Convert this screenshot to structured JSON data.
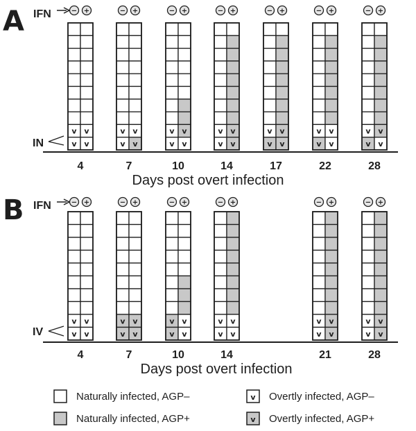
{
  "colors": {
    "positive_fill": "#c8c8c8",
    "negative_fill": "#ffffff",
    "ink": "#1e1e1e"
  },
  "symbols": {
    "minus": "−",
    "plus": "+",
    "overt_mark": "v"
  },
  "panels": [
    {
      "letter": "A",
      "ifn_label": "IFN",
      "overt_label": "IN",
      "axis_label": "Days post overt infection",
      "columns": [
        {
          "day": "4",
          "minus_cells": [
            "n",
            "n",
            "n",
            "n",
            "n",
            "n",
            "n",
            "n",
            "o",
            "o"
          ],
          "plus_cells": [
            "n",
            "n",
            "n",
            "n",
            "n",
            "n",
            "n",
            "n",
            "o",
            "o"
          ]
        },
        {
          "day": "7",
          "minus_cells": [
            "n",
            "n",
            "n",
            "n",
            "n",
            "n",
            "n",
            "n",
            "o",
            "o"
          ],
          "plus_cells": [
            "n",
            "n",
            "n",
            "n",
            "n",
            "n",
            "n",
            "n",
            "o",
            "O"
          ]
        },
        {
          "day": "10",
          "minus_cells": [
            "n",
            "n",
            "n",
            "n",
            "n",
            "n",
            "n",
            "n",
            "o",
            "o"
          ],
          "plus_cells": [
            "n",
            "n",
            "n",
            "n",
            "n",
            "n",
            "N",
            "N",
            "O",
            "o"
          ]
        },
        {
          "day": "14",
          "minus_cells": [
            "n",
            "n",
            "n",
            "n",
            "n",
            "n",
            "n",
            "n",
            "o",
            "o"
          ],
          "plus_cells": [
            "n",
            "N",
            "N",
            "N",
            "N",
            "N",
            "N",
            "N",
            "O",
            "O"
          ]
        },
        {
          "day": "17",
          "minus_cells": [
            "n",
            "n",
            "n",
            "n",
            "n",
            "n",
            "n",
            "n",
            "o",
            "O"
          ],
          "plus_cells": [
            "n",
            "N",
            "N",
            "N",
            "N",
            "N",
            "N",
            "N",
            "O",
            "O"
          ]
        },
        {
          "day": "22",
          "minus_cells": [
            "n",
            "n",
            "n",
            "n",
            "n",
            "n",
            "n",
            "n",
            "o",
            "O"
          ],
          "plus_cells": [
            "n",
            "N",
            "N",
            "N",
            "N",
            "N",
            "N",
            "N",
            "o",
            "o"
          ]
        },
        {
          "day": "28",
          "minus_cells": [
            "n",
            "n",
            "n",
            "n",
            "n",
            "n",
            "n",
            "n",
            "o",
            "O"
          ],
          "plus_cells": [
            "n",
            "N",
            "N",
            "N",
            "N",
            "N",
            "N",
            "N",
            "O",
            "o"
          ]
        }
      ]
    },
    {
      "letter": "B",
      "ifn_label": "IFN",
      "overt_label": "IV",
      "axis_label": "Days post overt infection",
      "columns": [
        {
          "day": "4",
          "minus_cells": [
            "n",
            "n",
            "n",
            "n",
            "n",
            "n",
            "n",
            "n",
            "o",
            "o"
          ],
          "plus_cells": [
            "n",
            "n",
            "n",
            "n",
            "n",
            "n",
            "n",
            "n",
            "o",
            "o"
          ]
        },
        {
          "day": "7",
          "minus_cells": [
            "n",
            "n",
            "n",
            "n",
            "n",
            "n",
            "n",
            "n",
            "O",
            "O"
          ],
          "plus_cells": [
            "n",
            "n",
            "n",
            "n",
            "n",
            "n",
            "n",
            "n",
            "O",
            "O"
          ]
        },
        {
          "day": "10",
          "minus_cells": [
            "n",
            "n",
            "n",
            "n",
            "n",
            "n",
            "n",
            "n",
            "O",
            "O"
          ],
          "plus_cells": [
            "n",
            "n",
            "n",
            "n",
            "n",
            "N",
            "N",
            "N",
            "o",
            "o"
          ]
        },
        {
          "day": "14",
          "minus_cells": [
            "n",
            "n",
            "n",
            "n",
            "n",
            "n",
            "n",
            "n",
            "o",
            "o"
          ],
          "plus_cells": [
            "N",
            "N",
            "N",
            "N",
            "N",
            "N",
            "N",
            "N",
            "o",
            "o"
          ]
        },
        {
          "day": "21",
          "minus_cells": [
            "n",
            "n",
            "n",
            "n",
            "n",
            "n",
            "n",
            "n",
            "o",
            "o"
          ],
          "plus_cells": [
            "N",
            "N",
            "N",
            "N",
            "N",
            "N",
            "N",
            "N",
            "O",
            "O"
          ]
        },
        {
          "day": "28",
          "minus_cells": [
            "n",
            "n",
            "n",
            "n",
            "n",
            "n",
            "n",
            "n",
            "o",
            "o"
          ],
          "plus_cells": [
            "N",
            "N",
            "N",
            "N",
            "N",
            "N",
            "N",
            "N",
            "O",
            "O"
          ]
        }
      ]
    }
  ],
  "legend": [
    {
      "label": "Naturally infected, AGP–",
      "fill": "#ffffff",
      "mark": ""
    },
    {
      "label": "Overtly infected, AGP–",
      "fill": "#ffffff",
      "mark": "v"
    },
    {
      "label": "Naturally infected, AGP+",
      "fill": "#c8c8c8",
      "mark": ""
    },
    {
      "label": "Overtly infected, AGP+",
      "fill": "#c8c8c8",
      "mark": "v"
    }
  ]
}
